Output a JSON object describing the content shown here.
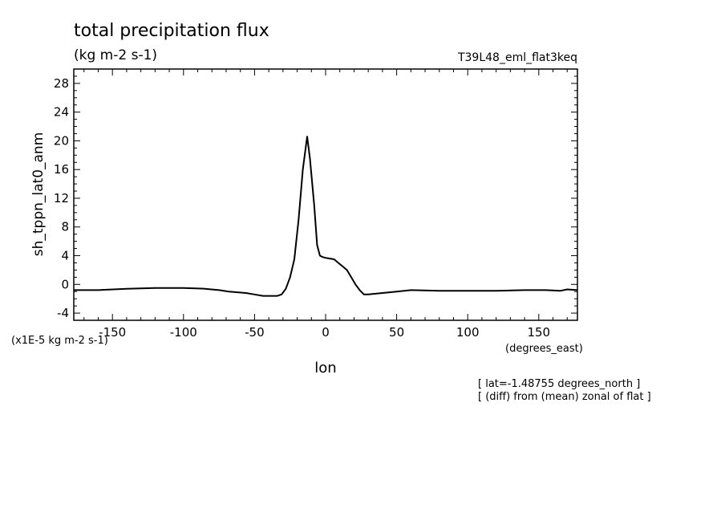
{
  "chart_data": {
    "type": "line",
    "title": "total precipitation flux",
    "units": "(kg m-2 s-1)",
    "run_label": "T39L48_eml_flat3keq",
    "ylabel": "sh_tppn_lat0_anm",
    "xlabel": "lon",
    "x_units": "(degrees_east)",
    "y_scale_note": "(x1E-5 kg m-2 s-1)",
    "notes": [
      "[ lat=-1.48755 degrees_north ]",
      "[ (diff) from (mean) zonal of flat ]"
    ],
    "xlim": [
      -177.2,
      177.2
    ],
    "ylim": [
      -5,
      30
    ],
    "xticks": [
      -150,
      -100,
      -50,
      0,
      50,
      100,
      150
    ],
    "xtick_labels": [
      "-150",
      "-100",
      "-50",
      "0",
      "50",
      "100",
      "150"
    ],
    "yticks": [
      -4,
      0,
      4,
      8,
      12,
      16,
      20,
      24,
      28
    ],
    "ytick_labels": [
      "-4",
      "0",
      "4",
      "8",
      "12",
      "16",
      "20",
      "24",
      "28"
    ],
    "grid": false,
    "series": [
      {
        "x": [
          -177.2,
          -160,
          -140,
          -120,
          -100,
          -85,
          -75,
          -68,
          -62,
          -56,
          -50,
          -44,
          -38,
          -34,
          -31,
          -28,
          -25,
          -22,
          -19,
          -16,
          -13,
          -11,
          -8,
          -6,
          -4,
          -2,
          0,
          3,
          6,
          9,
          12,
          15,
          18,
          21,
          24,
          27,
          30,
          40,
          50,
          60,
          80,
          100,
          120,
          140,
          155,
          165,
          170,
          177.2
        ],
        "y": [
          -0.8,
          -0.8,
          -0.6,
          -0.5,
          -0.5,
          -0.6,
          -0.8,
          -1.0,
          -1.1,
          -1.2,
          -1.4,
          -1.6,
          -1.6,
          -1.6,
          -1.4,
          -0.6,
          1.0,
          3.5,
          9.0,
          16.0,
          20.6,
          17.5,
          11.0,
          5.5,
          4.0,
          3.8,
          3.7,
          3.6,
          3.5,
          3.0,
          2.5,
          2.0,
          1.0,
          0.0,
          -0.8,
          -1.4,
          -1.4,
          -1.2,
          -1.0,
          -0.8,
          -0.9,
          -0.9,
          -0.9,
          -0.8,
          -0.8,
          -0.9,
          -0.7,
          -0.8
        ]
      }
    ]
  }
}
